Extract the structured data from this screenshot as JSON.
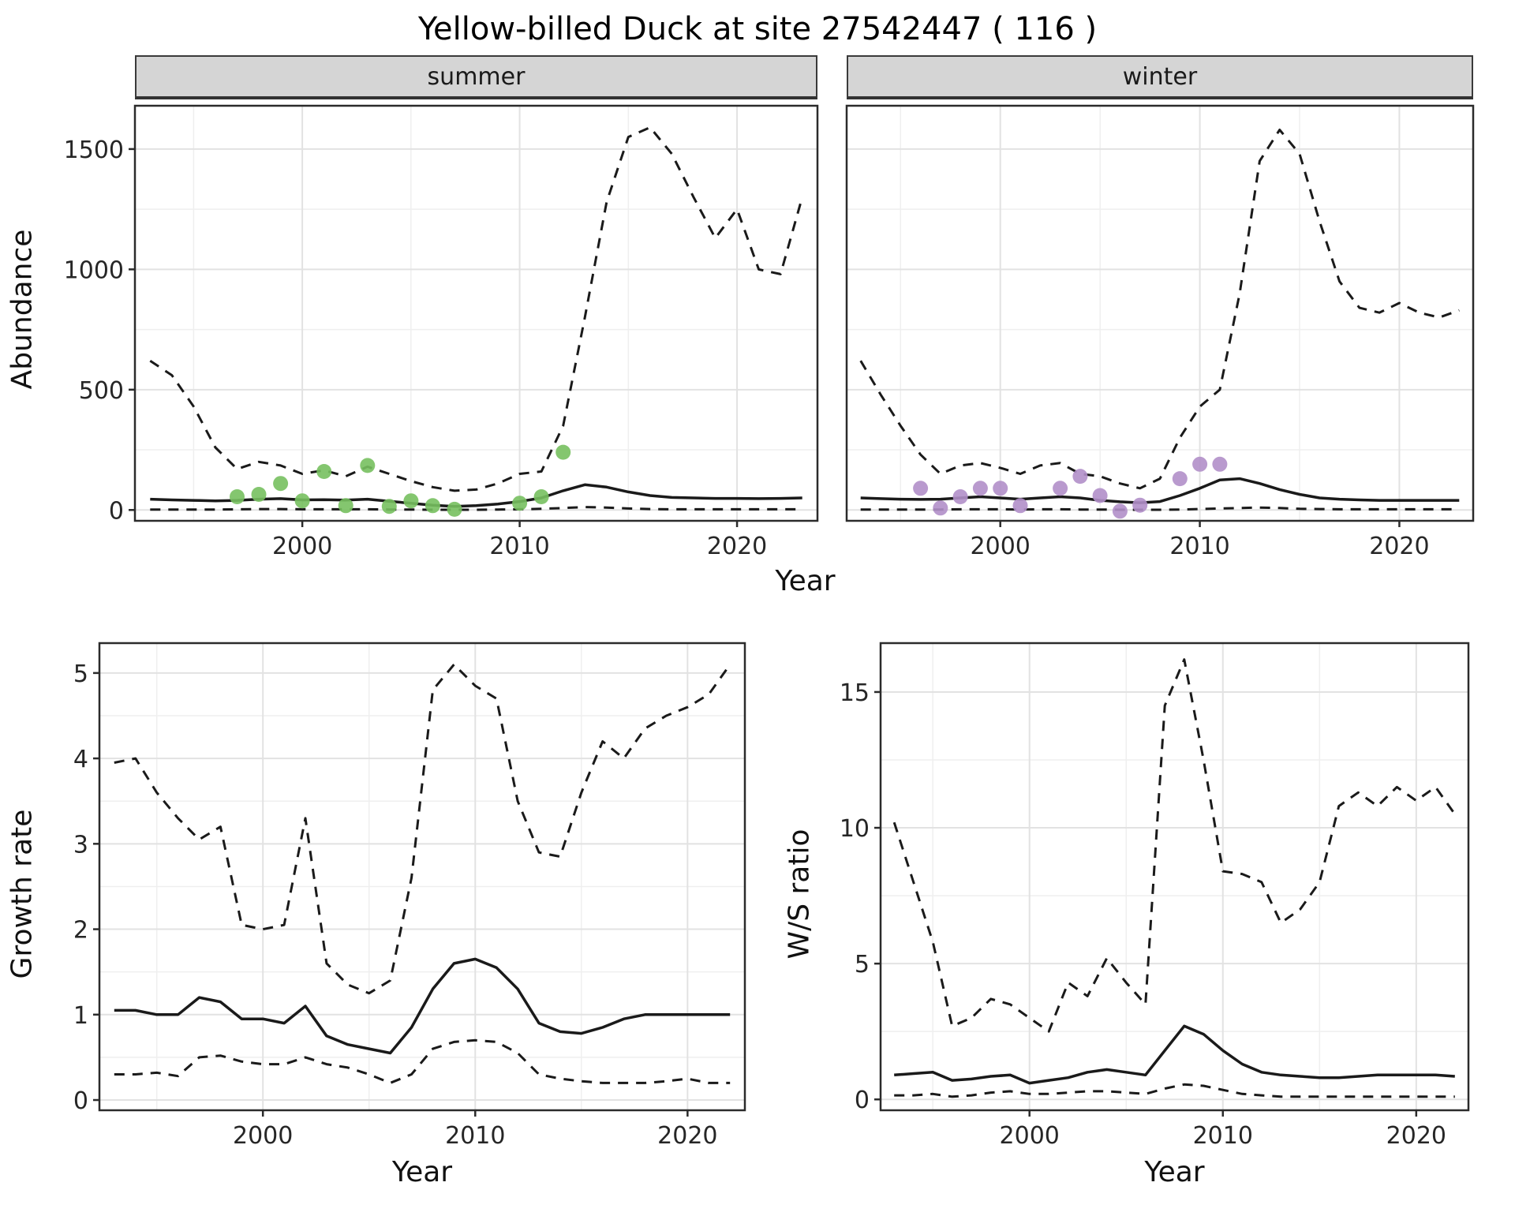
{
  "title": "Yellow-billed Duck at site 27542447 ( 116 )",
  "top": {
    "ylabel": "Abundance",
    "xlabel": "Year",
    "facets": [
      {
        "label": "summer"
      },
      {
        "label": "winter"
      }
    ]
  },
  "bottom_left": {
    "ylabel": "Growth rate",
    "xlabel": "Year"
  },
  "bottom_right": {
    "ylabel": "W/S ratio",
    "xlabel": "Year"
  },
  "colors": {
    "line": "#1a1a1a",
    "summer_points": "#77c05f",
    "winter_points": "#b18fc9",
    "grid_major": "#e2e2e2",
    "grid_minor": "#efefef",
    "panel_border": "#2b2b2b",
    "tick_text": "#262626",
    "strip_bg": "#d5d5d5"
  },
  "chart_data": [
    {
      "id": "abundance_summer",
      "type": "line",
      "title": "summer",
      "xlabel": "Year",
      "ylabel": "Abundance",
      "xlim": [
        1992.3,
        2023.7
      ],
      "ylim": [
        -45,
        1680
      ],
      "xticks": [
        2000,
        2010,
        2020
      ],
      "yticks": [
        0,
        500,
        1000,
        1500
      ],
      "grid": true,
      "series": [
        {
          "name": "upper-ci",
          "style": "dashed",
          "x": [
            1993,
            1994,
            1995,
            1996,
            1997,
            1998,
            1999,
            2000,
            2001,
            2002,
            2003,
            2004,
            2005,
            2006,
            2007,
            2008,
            2009,
            2010,
            2011,
            2012,
            2013,
            2014,
            2015,
            2016,
            2017,
            2018,
            2019,
            2020,
            2021,
            2022,
            2023
          ],
          "y": [
            620,
            560,
            430,
            260,
            170,
            200,
            185,
            150,
            165,
            140,
            180,
            150,
            120,
            95,
            80,
            85,
            110,
            150,
            160,
            350,
            800,
            1280,
            1550,
            1590,
            1480,
            1300,
            1130,
            1250,
            1000,
            980,
            1300
          ]
        },
        {
          "name": "lower-ci",
          "style": "dashed",
          "x": [
            1993,
            1994,
            1995,
            1996,
            1997,
            1998,
            1999,
            2000,
            2001,
            2002,
            2003,
            2004,
            2005,
            2006,
            2007,
            2008,
            2009,
            2010,
            2011,
            2012,
            2013,
            2014,
            2015,
            2016,
            2017,
            2018,
            2019,
            2020,
            2021,
            2022,
            2023
          ],
          "y": [
            2,
            2,
            2,
            2,
            3,
            4,
            4,
            3,
            3,
            3,
            3,
            2,
            2,
            1,
            1,
            1,
            2,
            3,
            5,
            8,
            12,
            10,
            6,
            4,
            3,
            3,
            3,
            3,
            3,
            3,
            3
          ]
        },
        {
          "name": "estimate",
          "style": "solid",
          "x": [
            1993,
            1994,
            1995,
            1996,
            1997,
            1998,
            1999,
            2000,
            2001,
            2002,
            2003,
            2004,
            2005,
            2006,
            2007,
            2008,
            2009,
            2010,
            2011,
            2012,
            2013,
            2014,
            2015,
            2016,
            2017,
            2018,
            2019,
            2020,
            2021,
            2022,
            2023
          ],
          "y": [
            45,
            42,
            40,
            38,
            40,
            45,
            47,
            42,
            43,
            41,
            45,
            36,
            28,
            20,
            15,
            18,
            25,
            35,
            50,
            80,
            105,
            95,
            75,
            60,
            52,
            50,
            48,
            48,
            47,
            48,
            50
          ]
        }
      ],
      "points": {
        "name": "observed-counts",
        "color": "#77c05f",
        "x": [
          1997,
          1998,
          1999,
          2000,
          2001,
          2002,
          2003,
          2004,
          2005,
          2006,
          2007,
          2010,
          2011,
          2012
        ],
        "y": [
          55,
          65,
          110,
          38,
          160,
          18,
          185,
          15,
          38,
          18,
          3,
          28,
          55,
          240
        ]
      }
    },
    {
      "id": "abundance_winter",
      "type": "line",
      "title": "winter",
      "xlabel": "Year",
      "ylabel": "Abundance",
      "xlim": [
        1992.3,
        2023.7
      ],
      "ylim": [
        -45,
        1680
      ],
      "xticks": [
        2000,
        2010,
        2020
      ],
      "yticks": [
        0,
        500,
        1000,
        1500
      ],
      "grid": true,
      "series": [
        {
          "name": "upper-ci",
          "style": "dashed",
          "x": [
            1993,
            1994,
            1995,
            1996,
            1997,
            1998,
            1999,
            2000,
            2001,
            2002,
            2003,
            2004,
            2005,
            2006,
            2007,
            2008,
            2009,
            2010,
            2011,
            2012,
            2013,
            2014,
            2015,
            2016,
            2017,
            2018,
            2019,
            2020,
            2021,
            2022,
            2023
          ],
          "y": [
            620,
            480,
            350,
            230,
            150,
            185,
            195,
            175,
            150,
            185,
            195,
            150,
            140,
            110,
            90,
            130,
            300,
            430,
            500,
            900,
            1450,
            1580,
            1480,
            1200,
            950,
            840,
            820,
            860,
            820,
            800,
            830
          ]
        },
        {
          "name": "lower-ci",
          "style": "dashed",
          "x": [
            1993,
            1994,
            1995,
            1996,
            1997,
            1998,
            1999,
            2000,
            2001,
            2002,
            2003,
            2004,
            2005,
            2006,
            2007,
            2008,
            2009,
            2010,
            2011,
            2012,
            2013,
            2014,
            2015,
            2016,
            2017,
            2018,
            2019,
            2020,
            2021,
            2022,
            2023
          ],
          "y": [
            2,
            2,
            2,
            2,
            2,
            3,
            3,
            3,
            2,
            3,
            3,
            2,
            2,
            1,
            1,
            1,
            2,
            4,
            6,
            8,
            10,
            8,
            5,
            4,
            3,
            3,
            3,
            3,
            3,
            3,
            3
          ]
        },
        {
          "name": "estimate",
          "style": "solid",
          "x": [
            1993,
            1994,
            1995,
            1996,
            1997,
            1998,
            1999,
            2000,
            2001,
            2002,
            2003,
            2004,
            2005,
            2006,
            2007,
            2008,
            2009,
            2010,
            2011,
            2012,
            2013,
            2014,
            2015,
            2016,
            2017,
            2018,
            2019,
            2020,
            2021,
            2022,
            2023
          ],
          "y": [
            50,
            47,
            45,
            44,
            45,
            50,
            55,
            50,
            45,
            50,
            55,
            50,
            40,
            34,
            30,
            35,
            60,
            90,
            125,
            130,
            110,
            85,
            65,
            50,
            45,
            42,
            40,
            40,
            40,
            40,
            40
          ]
        }
      ],
      "points": {
        "name": "observed-counts",
        "color": "#b18fc9",
        "x": [
          1996,
          1997,
          1998,
          1999,
          2000,
          2001,
          2003,
          2004,
          2005,
          2006,
          2007,
          2009,
          2010,
          2011
        ],
        "y": [
          90,
          8,
          55,
          90,
          90,
          18,
          90,
          140,
          60,
          -5,
          20,
          130,
          190,
          190
        ]
      }
    },
    {
      "id": "growth_rate",
      "type": "line",
      "title": "Growth rate",
      "xlabel": "Year",
      "ylabel": "Growth rate",
      "xlim": [
        1992.3,
        2022.7
      ],
      "ylim": [
        -0.12,
        5.35
      ],
      "xticks": [
        2000,
        2010,
        2020
      ],
      "yticks": [
        0,
        1,
        2,
        3,
        4,
        5
      ],
      "grid": true,
      "series": [
        {
          "name": "upper-ci",
          "style": "dashed",
          "x": [
            1993,
            1994,
            1995,
            1996,
            1997,
            1998,
            1999,
            2000,
            2001,
            2002,
            2003,
            2004,
            2005,
            2006,
            2007,
            2008,
            2009,
            2010,
            2011,
            2012,
            2013,
            2014,
            2015,
            2016,
            2017,
            2018,
            2019,
            2020,
            2021,
            2022
          ],
          "y": [
            3.95,
            4.0,
            3.6,
            3.3,
            3.05,
            3.2,
            2.05,
            2.0,
            2.05,
            3.3,
            1.6,
            1.35,
            1.25,
            1.4,
            2.6,
            4.8,
            5.1,
            4.85,
            4.7,
            3.5,
            2.9,
            2.85,
            3.6,
            4.2,
            4.0,
            4.35,
            4.5,
            4.6,
            4.75,
            5.1
          ]
        },
        {
          "name": "lower-ci",
          "style": "dashed",
          "x": [
            1993,
            1994,
            1995,
            1996,
            1997,
            1998,
            1999,
            2000,
            2001,
            2002,
            2003,
            2004,
            2005,
            2006,
            2007,
            2008,
            2009,
            2010,
            2011,
            2012,
            2013,
            2014,
            2015,
            2016,
            2017,
            2018,
            2019,
            2020,
            2021,
            2022
          ],
          "y": [
            0.3,
            0.3,
            0.32,
            0.28,
            0.5,
            0.52,
            0.45,
            0.42,
            0.42,
            0.5,
            0.42,
            0.38,
            0.3,
            0.2,
            0.3,
            0.6,
            0.68,
            0.7,
            0.68,
            0.55,
            0.3,
            0.25,
            0.22,
            0.2,
            0.2,
            0.2,
            0.22,
            0.25,
            0.2,
            0.2
          ]
        },
        {
          "name": "estimate",
          "style": "solid",
          "x": [
            1993,
            1994,
            1995,
            1996,
            1997,
            1998,
            1999,
            2000,
            2001,
            2002,
            2003,
            2004,
            2005,
            2006,
            2007,
            2008,
            2009,
            2010,
            2011,
            2012,
            2013,
            2014,
            2015,
            2016,
            2017,
            2018,
            2019,
            2020,
            2021,
            2022
          ],
          "y": [
            1.05,
            1.05,
            1.0,
            1.0,
            1.2,
            1.15,
            0.95,
            0.95,
            0.9,
            1.1,
            0.75,
            0.65,
            0.6,
            0.55,
            0.85,
            1.3,
            1.6,
            1.65,
            1.55,
            1.3,
            0.9,
            0.8,
            0.78,
            0.85,
            0.95,
            1.0,
            1.0,
            1.0,
            1.0,
            1.0
          ]
        }
      ]
    },
    {
      "id": "ws_ratio",
      "type": "line",
      "title": "W/S ratio",
      "xlabel": "Year",
      "ylabel": "W/S ratio",
      "xlim": [
        1992.3,
        2022.7
      ],
      "ylim": [
        -0.4,
        16.8
      ],
      "xticks": [
        2000,
        2010,
        2020
      ],
      "yticks": [
        0,
        5,
        10,
        15
      ],
      "grid": true,
      "series": [
        {
          "name": "upper-ci",
          "style": "dashed",
          "x": [
            1993,
            1994,
            1995,
            1996,
            1997,
            1998,
            1999,
            2000,
            2001,
            2002,
            2003,
            2004,
            2005,
            2006,
            2007,
            2008,
            2009,
            2010,
            2011,
            2012,
            2013,
            2014,
            2015,
            2016,
            2017,
            2018,
            2019,
            2020,
            2021,
            2022
          ],
          "y": [
            10.2,
            8.0,
            5.8,
            2.7,
            3.0,
            3.7,
            3.5,
            3.0,
            2.5,
            4.3,
            3.8,
            5.2,
            4.3,
            3.5,
            14.5,
            16.2,
            12.5,
            8.4,
            8.3,
            8.0,
            6.5,
            7.0,
            8.0,
            10.8,
            11.3,
            10.8,
            11.5,
            11.0,
            11.5,
            10.5
          ]
        },
        {
          "name": "lower-ci",
          "style": "dashed",
          "x": [
            1993,
            1994,
            1995,
            1996,
            1997,
            1998,
            1999,
            2000,
            2001,
            2002,
            2003,
            2004,
            2005,
            2006,
            2007,
            2008,
            2009,
            2010,
            2011,
            2012,
            2013,
            2014,
            2015,
            2016,
            2017,
            2018,
            2019,
            2020,
            2021,
            2022
          ],
          "y": [
            0.15,
            0.15,
            0.2,
            0.1,
            0.15,
            0.25,
            0.3,
            0.2,
            0.2,
            0.25,
            0.3,
            0.3,
            0.25,
            0.2,
            0.4,
            0.55,
            0.5,
            0.35,
            0.2,
            0.15,
            0.1,
            0.1,
            0.1,
            0.1,
            0.1,
            0.1,
            0.1,
            0.1,
            0.1,
            0.1
          ]
        },
        {
          "name": "estimate",
          "style": "solid",
          "x": [
            1993,
            1994,
            1995,
            1996,
            1997,
            1998,
            1999,
            2000,
            2001,
            2002,
            2003,
            2004,
            2005,
            2006,
            2007,
            2008,
            2009,
            2010,
            2011,
            2012,
            2013,
            2014,
            2015,
            2016,
            2017,
            2018,
            2019,
            2020,
            2021,
            2022
          ],
          "y": [
            0.9,
            0.95,
            1.0,
            0.7,
            0.75,
            0.85,
            0.9,
            0.6,
            0.7,
            0.8,
            1.0,
            1.1,
            1.0,
            0.9,
            1.8,
            2.7,
            2.4,
            1.8,
            1.3,
            1.0,
            0.9,
            0.85,
            0.8,
            0.8,
            0.85,
            0.9,
            0.9,
            0.9,
            0.9,
            0.85
          ]
        }
      ]
    }
  ]
}
